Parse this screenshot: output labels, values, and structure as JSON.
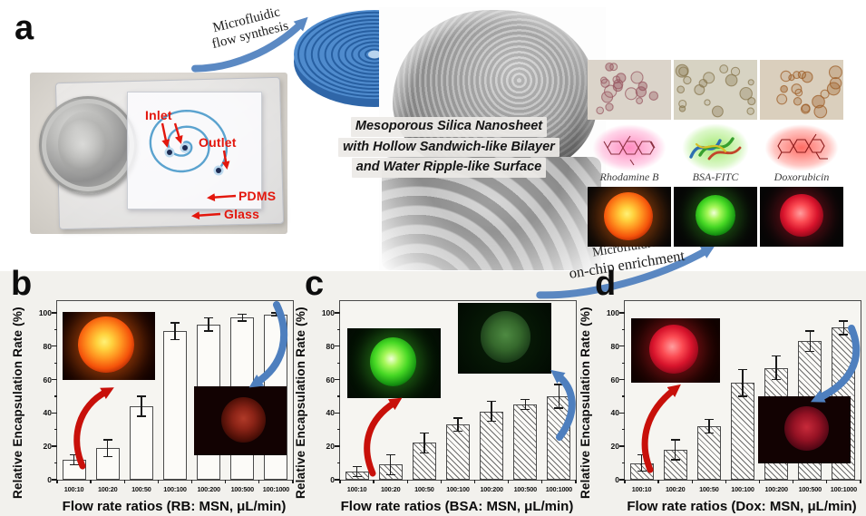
{
  "figure": {
    "panel_a_label": "a",
    "chip_labels": {
      "inlet": "Inlet",
      "outlet": "Outlet",
      "pdms": "PDMS",
      "glass": "Glass"
    },
    "arrow_flow_synthesis": {
      "line1": "Microfluidic",
      "line2": "flow synthesis"
    },
    "arrow_enrichment": {
      "line1": "Microfluidic",
      "line2": "on-chip enrichment"
    },
    "caption_lines": [
      "Mesoporous Silica Nanosheet",
      "with Hollow Sandwich-like Bilayer",
      "and Water Ripple-like Surface"
    ],
    "molecule_labels": [
      "Rhodamine B",
      "BSA-FITC",
      "Doxorubicin"
    ],
    "colors": {
      "annotation_red": "#c8100a",
      "annotation_blue": "#4e7fbe",
      "chip_label_red": "#e3170d",
      "chip_channel_blue": "#5ba3cf",
      "disk_blue": "#4a86c8"
    }
  },
  "chart_data": [
    {
      "panel_label": "b",
      "type": "bar",
      "y_title": "Relative Encapsulation Rate (%)",
      "x_title": "Flow rate ratios (RB: MSN, μL/min)",
      "categories": [
        "100:10",
        "100:20",
        "100:50",
        "100:100",
        "100:200",
        "100:500",
        "100:1000"
      ],
      "values": [
        12,
        19,
        44,
        89,
        93,
        97,
        99
      ],
      "errors": [
        3,
        5,
        6,
        5,
        4,
        2,
        1
      ],
      "bar_fill": "plain",
      "yticks": [
        0,
        20,
        40,
        60,
        80,
        100
      ],
      "ylim": [
        0,
        107
      ],
      "legend": "none",
      "grid": "off"
    },
    {
      "panel_label": "c",
      "type": "bar",
      "y_title": "Relative Encapsulation Rate (%)",
      "x_title": "Flow rate ratios (BSA: MSN, μL/min)",
      "categories": [
        "100:10",
        "100:20",
        "100:50",
        "100:100",
        "100:200",
        "100:500",
        "100:1000"
      ],
      "values": [
        5,
        9,
        22,
        33,
        41,
        45,
        50
      ],
      "errors": [
        3,
        6,
        6,
        4,
        6,
        3,
        7
      ],
      "bar_fill": "hatched",
      "yticks": [
        0,
        20,
        40,
        60,
        80,
        100
      ],
      "ylim": [
        0,
        107
      ],
      "legend": "none",
      "grid": "off"
    },
    {
      "panel_label": "d",
      "type": "bar",
      "y_title": "Relative Encapsulation Rate (%)",
      "x_title": "Flow rate ratios (Dox: MSN, μL/min)",
      "categories": [
        "100:10",
        "100:20",
        "100:50",
        "100:100",
        "100:200",
        "100:500",
        "100:1000"
      ],
      "values": [
        10,
        18,
        32,
        58,
        67,
        83,
        91
      ],
      "errors": [
        5,
        6,
        4,
        8,
        7,
        6,
        4
      ],
      "bar_fill": "hatched",
      "yticks": [
        0,
        20,
        40,
        60,
        80,
        100
      ],
      "ylim": [
        0,
        107
      ],
      "legend": "none",
      "grid": "off"
    }
  ]
}
